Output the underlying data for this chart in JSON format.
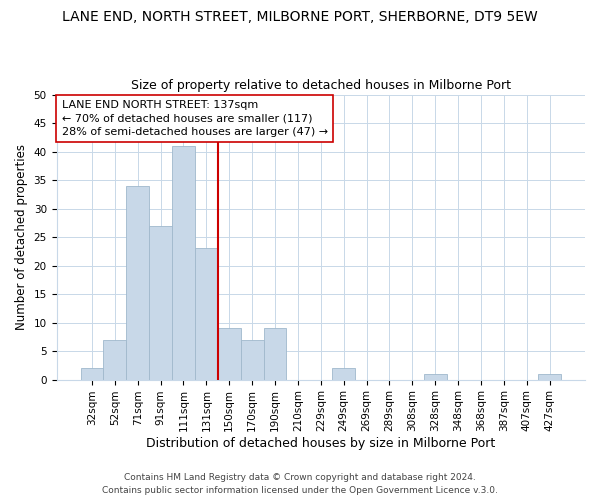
{
  "title": "LANE END, NORTH STREET, MILBORNE PORT, SHERBORNE, DT9 5EW",
  "subtitle": "Size of property relative to detached houses in Milborne Port",
  "xlabel": "Distribution of detached houses by size in Milborne Port",
  "ylabel": "Number of detached properties",
  "bar_labels": [
    "32sqm",
    "52sqm",
    "71sqm",
    "91sqm",
    "111sqm",
    "131sqm",
    "150sqm",
    "170sqm",
    "190sqm",
    "210sqm",
    "229sqm",
    "249sqm",
    "269sqm",
    "289sqm",
    "308sqm",
    "328sqm",
    "348sqm",
    "368sqm",
    "387sqm",
    "407sqm",
    "427sqm"
  ],
  "bar_values": [
    2,
    7,
    34,
    27,
    41,
    23,
    9,
    7,
    9,
    0,
    0,
    2,
    0,
    0,
    0,
    1,
    0,
    0,
    0,
    0,
    1
  ],
  "bar_color": "#c8d8e8",
  "bar_edge_color": "#a0b8cc",
  "vline_color": "#cc0000",
  "ylim": [
    0,
    50
  ],
  "annotation_text": "LANE END NORTH STREET: 137sqm\n← 70% of detached houses are smaller (117)\n28% of semi-detached houses are larger (47) →",
  "annotation_box_color": "#ffffff",
  "annotation_box_edge": "#cc0000",
  "footer_line1": "Contains HM Land Registry data © Crown copyright and database right 2024.",
  "footer_line2": "Contains public sector information licensed under the Open Government Licence v.3.0.",
  "title_fontsize": 10,
  "subtitle_fontsize": 9,
  "ylabel_fontsize": 8.5,
  "xlabel_fontsize": 9,
  "tick_fontsize": 7.5,
  "annotation_fontsize": 8,
  "footer_fontsize": 6.5
}
